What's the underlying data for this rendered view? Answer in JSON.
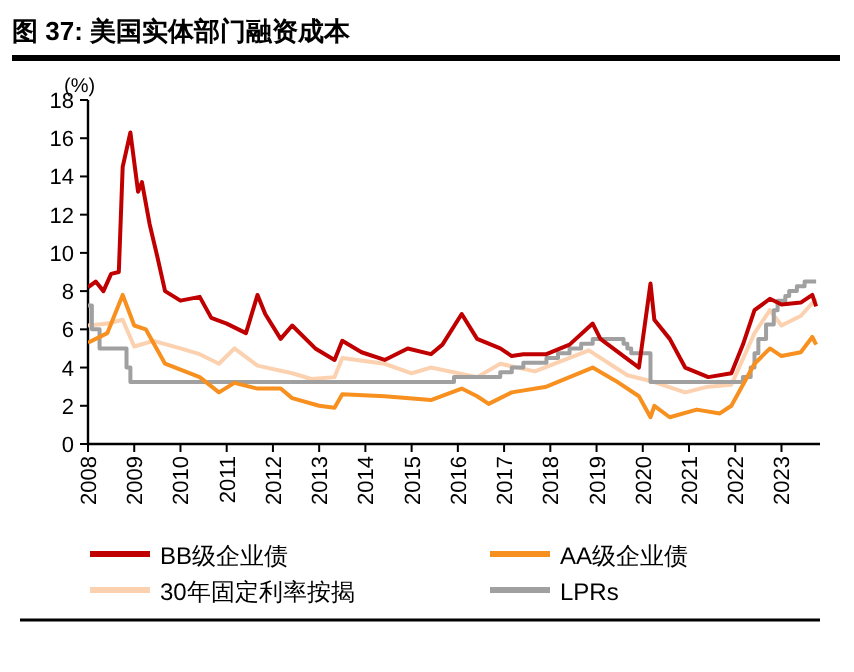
{
  "chart_data": {
    "type": "line",
    "title": "图 37: 美国实体部门融资成本",
    "ylabel": "(%)",
    "xlim": [
      "2008",
      "2023-11"
    ],
    "xticks": [
      "2008",
      "2009",
      "2010",
      "2011",
      "2012",
      "2013",
      "2014",
      "2015",
      "2016",
      "2017",
      "2018",
      "2019",
      "2020",
      "2021",
      "2022",
      "2023"
    ],
    "ylim": [
      0,
      18
    ],
    "yticks": [
      0,
      2,
      4,
      6,
      8,
      10,
      12,
      14,
      16,
      18
    ],
    "legend": "bottom",
    "series": [
      {
        "name": "BB级企业债",
        "color": "#c00000",
        "x": [
          "2008-01",
          "2008-03",
          "2008-05",
          "2008-07",
          "2008-09",
          "2008-10",
          "2008-12",
          "2009-02",
          "2009-03",
          "2009-05",
          "2009-07",
          "2009-09",
          "2010-01",
          "2010-06",
          "2010-09",
          "2011-01",
          "2011-06",
          "2011-09",
          "2011-11",
          "2012-03",
          "2012-06",
          "2012-12",
          "2013-05",
          "2013-07",
          "2013-12",
          "2014-06",
          "2014-12",
          "2015-06",
          "2015-09",
          "2016-02",
          "2016-06",
          "2016-12",
          "2017-03",
          "2017-06",
          "2017-12",
          "2018-06",
          "2018-12",
          "2019-02",
          "2019-12",
          "2020-03",
          "2020-04",
          "2020-08",
          "2020-12",
          "2021-06",
          "2021-12",
          "2022-03",
          "2022-06",
          "2022-10",
          "2023-01",
          "2023-06",
          "2023-09",
          "2023-10"
        ],
        "values": [
          8.2,
          8.5,
          8.0,
          8.9,
          9.0,
          14.5,
          16.3,
          13.2,
          13.7,
          11.5,
          9.8,
          8.0,
          7.5,
          7.7,
          6.6,
          6.3,
          5.8,
          7.8,
          6.8,
          5.5,
          6.2,
          5.0,
          4.4,
          5.4,
          4.8,
          4.4,
          5.0,
          4.7,
          5.2,
          6.8,
          5.5,
          5.0,
          4.6,
          4.7,
          4.7,
          5.2,
          6.3,
          5.5,
          4.0,
          8.4,
          6.5,
          5.5,
          4.0,
          3.5,
          3.7,
          5.2,
          7.0,
          7.6,
          7.3,
          7.4,
          7.8,
          7.2
        ]
      },
      {
        "name": "AA级企业债",
        "color": "#f7901e",
        "x": [
          "2008-01",
          "2008-06",
          "2008-10",
          "2009-01",
          "2009-04",
          "2009-09",
          "2010-06",
          "2010-11",
          "2011-03",
          "2011-09",
          "2012-03",
          "2012-06",
          "2013-01",
          "2013-05",
          "2013-07",
          "2014-06",
          "2015-06",
          "2016-02",
          "2016-06",
          "2016-09",
          "2017-03",
          "2017-12",
          "2018-06",
          "2018-12",
          "2019-06",
          "2019-12",
          "2020-03",
          "2020-04",
          "2020-08",
          "2021-03",
          "2021-09",
          "2021-12",
          "2022-06",
          "2022-10",
          "2023-01",
          "2023-06",
          "2023-09",
          "2023-10"
        ],
        "values": [
          5.3,
          5.8,
          7.8,
          6.2,
          6.0,
          4.2,
          3.5,
          2.7,
          3.2,
          2.9,
          2.9,
          2.4,
          2.0,
          1.9,
          2.6,
          2.5,
          2.3,
          2.9,
          2.5,
          2.1,
          2.7,
          3.0,
          3.5,
          4.0,
          3.3,
          2.5,
          1.4,
          2.0,
          1.4,
          1.8,
          1.6,
          2.0,
          4.2,
          5.0,
          4.6,
          4.8,
          5.6,
          5.2
        ]
      },
      {
        "name": "30年固定利率按揭",
        "color": "#fbd1b0",
        "x": [
          "2008-01",
          "2008-06",
          "2008-10",
          "2009-01",
          "2009-06",
          "2010-01",
          "2010-06",
          "2010-11",
          "2011-03",
          "2011-09",
          "2012-06",
          "2012-11",
          "2013-05",
          "2013-07",
          "2014-06",
          "2015-01",
          "2015-06",
          "2016-06",
          "2016-12",
          "2017-09",
          "2018-11",
          "2019-09",
          "2020-03",
          "2020-12",
          "2021-06",
          "2021-12",
          "2022-06",
          "2022-10",
          "2023-01",
          "2023-06",
          "2023-10"
        ],
        "values": [
          6.2,
          6.3,
          6.5,
          5.1,
          5.4,
          5.0,
          4.7,
          4.2,
          5.0,
          4.1,
          3.7,
          3.4,
          3.5,
          4.5,
          4.2,
          3.7,
          4.0,
          3.5,
          4.2,
          3.8,
          4.9,
          3.6,
          3.3,
          2.7,
          3.0,
          3.1,
          5.8,
          7.0,
          6.2,
          6.7,
          7.6
        ]
      },
      {
        "name": "LPRs",
        "color": "#a0a0a0",
        "type": "step",
        "x": [
          "2008-01",
          "2008-02",
          "2008-04",
          "2008-11",
          "2008-12",
          "2015-12",
          "2016-12",
          "2017-03",
          "2017-06",
          "2017-12",
          "2018-03",
          "2018-06",
          "2018-09",
          "2018-12",
          "2019-08",
          "2019-09",
          "2019-10",
          "2020-03",
          "2022-03",
          "2022-05",
          "2022-06",
          "2022-07",
          "2022-09",
          "2022-11",
          "2022-12",
          "2023-02",
          "2023-03",
          "2023-05",
          "2023-07",
          "2023-10"
        ],
        "values": [
          7.25,
          6.0,
          5.0,
          4.0,
          3.25,
          3.5,
          3.75,
          4.0,
          4.25,
          4.5,
          4.75,
          5.0,
          5.25,
          5.5,
          5.25,
          5.0,
          4.75,
          3.25,
          3.5,
          4.0,
          4.75,
          5.5,
          6.25,
          7.0,
          7.5,
          7.75,
          8.0,
          8.25,
          8.5,
          8.5
        ]
      }
    ]
  }
}
